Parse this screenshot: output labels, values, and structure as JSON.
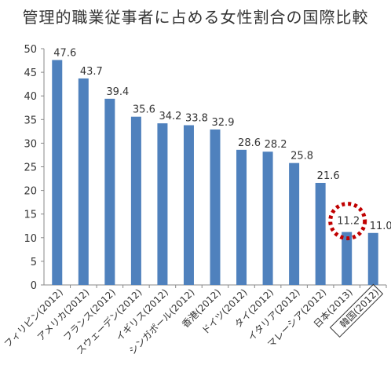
{
  "chart_data": {
    "type": "bar",
    "title": "管理的職業従事者に占める女性割合の国際比較",
    "categories": [
      "フィリピン(2012)",
      "アメリカ(2012)",
      "フランス(2012)",
      "スウェーデン(2012)",
      "イギリス(2012)",
      "シンガポール(2012)",
      "香港(2012)",
      "ドイツ(2012)",
      "タイ(2012)",
      "イタリア(2012)",
      "マレーシア(2012)",
      "日本(2013)",
      "韓国(2012)"
    ],
    "values": [
      47.6,
      43.7,
      39.4,
      35.6,
      34.2,
      33.8,
      32.9,
      28.6,
      28.2,
      25.8,
      21.6,
      11.2,
      11.0
    ],
    "ylim": [
      0,
      50
    ],
    "yticks": [
      0,
      5,
      10,
      15,
      20,
      25,
      30,
      35,
      40,
      45,
      50
    ],
    "grid": false,
    "bar_color": "#4f81bd",
    "highlight": {
      "category": "日本(2013)",
      "style": "dotted-circle",
      "color": "#c00000"
    },
    "boxed_label": "韓国(2012)"
  }
}
